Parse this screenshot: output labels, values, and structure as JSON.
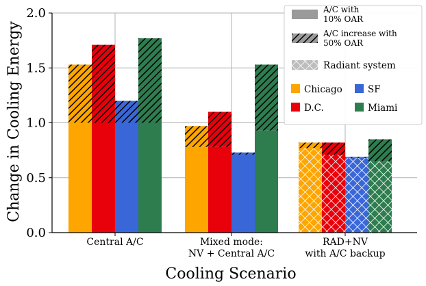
{
  "chart_data": {
    "type": "bar",
    "title": "",
    "xlabel": "Cooling Scenario",
    "ylabel": "Change in Cooling Energy",
    "ylim": [
      0.0,
      2.0
    ],
    "yticks": [
      "0.0",
      "0.5",
      "1.0",
      "1.5",
      "2.0"
    ],
    "grid": true,
    "categories": [
      [
        "Central A/C"
      ],
      [
        "Mixed mode:",
        "NV + Central A/C"
      ],
      [
        "RAD+NV",
        "with A/C backup"
      ]
    ],
    "component_types": [
      "A/C with 10% OAR",
      "A/C increase with 50% OAR",
      "Radiant system"
    ],
    "series": [
      {
        "name": "Chicago",
        "color": "#ffa500",
        "base": [
          1.0,
          0.78,
          0.77
        ],
        "total": [
          1.53,
          0.97,
          0.82
        ]
      },
      {
        "name": "D.C.",
        "color": "#e8000b",
        "base": [
          1.0,
          0.78,
          0.71
        ],
        "total": [
          1.71,
          1.1,
          0.82
        ]
      },
      {
        "name": "SF",
        "color": "#3a67d8",
        "base": [
          1.0,
          0.71,
          0.68
        ],
        "total": [
          1.2,
          0.73,
          0.69
        ]
      },
      {
        "name": "Miami",
        "color": "#2e7d4f",
        "base": [
          1.0,
          0.93,
          0.65
        ],
        "total": [
          1.77,
          1.53,
          0.85
        ]
      }
    ],
    "base_component": [
      "A/C with 10% OAR",
      "A/C with 10% OAR",
      "Radiant system"
    ],
    "legend": {
      "components": [
        {
          "label_lines": [
            "A/C  with",
            "10% OAR"
          ],
          "pattern": "solid"
        },
        {
          "label_lines": [
            "A/C increase with",
            "50% OAR"
          ],
          "pattern": "hatch"
        },
        {
          "label_lines": [
            "Radiant system"
          ],
          "pattern": "cross"
        }
      ],
      "cities": [
        "Chicago",
        "SF",
        "D.C.",
        "Miami"
      ],
      "placement": "top-right"
    }
  }
}
